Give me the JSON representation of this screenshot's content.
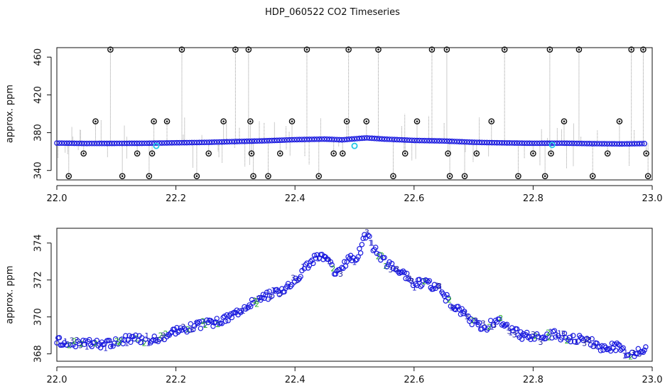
{
  "figure": {
    "title": "HDP_060522  CO2 Timeseries"
  },
  "colors": {
    "raw_point": "#111111",
    "raw_line": "#9a9a9a",
    "series": "#1a1adf",
    "highlight": "#27c8e6",
    "label_1": "#2222cc",
    "label_2": "#22aa22",
    "label_3": "#1a1a99"
  },
  "chart_data": [
    {
      "type": "scatter",
      "title": "",
      "xlabel": "",
      "ylabel": "approx. ppm",
      "xlim": [
        22.0,
        23.0
      ],
      "ylim": [
        330,
        470
      ],
      "xticks": [
        "22.0",
        "22.2",
        "22.4",
        "22.6",
        "22.8",
        "23.0"
      ],
      "yticks": [
        "340",
        "380",
        "420",
        "460"
      ],
      "grid": false,
      "series": [
        {
          "marker": "blue circle",
          "x": [
            22.0,
            22.05,
            22.1,
            22.15,
            22.2,
            22.25,
            22.3,
            22.35,
            22.4,
            22.45,
            22.48,
            22.5,
            22.52,
            22.55,
            22.6,
            22.65,
            22.7,
            22.75,
            22.8,
            22.85,
            22.9,
            22.95,
            22.99
          ],
          "y": [
            369,
            368.6,
            368.7,
            368.8,
            369.3,
            369.7,
            370.6,
            371.4,
            372.6,
            373.2,
            372.4,
            373.5,
            374.5,
            373.2,
            371.8,
            371.2,
            369.8,
            369.2,
            368.8,
            368.9,
            368.4,
            368.1,
            368.5
          ]
        },
        {
          "marker": "black open circle",
          "x": [
            22.02,
            22.045,
            22.065,
            22.09,
            22.11,
            22.135,
            22.155,
            22.16,
            22.163,
            22.185,
            22.21,
            22.235,
            22.255,
            22.28,
            22.3,
            22.322,
            22.325,
            22.327,
            22.33,
            22.355,
            22.375,
            22.395,
            22.42,
            22.44,
            22.465,
            22.48,
            22.487,
            22.49,
            22.52,
            22.54,
            22.565,
            22.585,
            22.605,
            22.63,
            22.655,
            22.657,
            22.66,
            22.685,
            22.705,
            22.73,
            22.752,
            22.775,
            22.8,
            22.82,
            22.828,
            22.83,
            22.852,
            22.877,
            22.9,
            22.925,
            22.945,
            22.965,
            22.985,
            22.99,
            22.993
          ],
          "y": [
            334,
            358,
            392,
            468,
            334,
            358,
            334,
            358,
            392,
            392,
            468,
            334,
            358,
            392,
            468,
            468,
            392,
            358,
            334,
            334,
            358,
            392,
            468,
            334,
            358,
            358,
            392,
            468,
            392,
            468,
            334,
            358,
            392,
            468,
            468,
            358,
            334,
            334,
            358,
            392,
            468,
            334,
            358,
            334,
            468,
            358,
            392,
            468,
            334,
            358,
            392,
            468,
            468,
            358,
            334
          ]
        },
        {
          "marker": "cyan circle",
          "x": [
            22.167,
            22.5,
            22.832
          ],
          "y": [
            366,
            366,
            367
          ]
        }
      ]
    },
    {
      "type": "scatter",
      "title": "",
      "xlabel": "",
      "ylabel": "approx. ppm",
      "xlim": [
        22.0,
        23.0
      ],
      "ylim": [
        367.6,
        374.8
      ],
      "xticks": [
        "22.0",
        "22.2",
        "22.4",
        "22.6",
        "22.8",
        "23.0"
      ],
      "yticks": [
        "368",
        "370",
        "372",
        "374"
      ],
      "grid": false,
      "series": [
        {
          "marker": "digits 1, 2, 3",
          "x": [
            22.0,
            22.02,
            22.05,
            22.08,
            22.1,
            22.12,
            22.15,
            22.17,
            22.2,
            22.22,
            22.25,
            22.28,
            22.3,
            22.32,
            22.35,
            22.38,
            22.4,
            22.42,
            22.44,
            22.455,
            22.46,
            22.47,
            22.48,
            22.49,
            22.5,
            22.51,
            22.52,
            22.53,
            22.55,
            22.58,
            22.6,
            22.62,
            22.64,
            22.66,
            22.68,
            22.7,
            22.72,
            22.74,
            22.76,
            22.78,
            22.8,
            22.82,
            22.83,
            22.85,
            22.88,
            22.9,
            22.92,
            22.94,
            22.96,
            22.98,
            22.99
          ],
          "y": [
            368.7,
            368.5,
            368.6,
            368.5,
            368.7,
            368.8,
            368.8,
            368.8,
            369.3,
            369.4,
            369.6,
            369.8,
            370.2,
            370.7,
            371.1,
            371.5,
            372.0,
            372.8,
            373.3,
            373.3,
            372.8,
            372.3,
            372.6,
            373.3,
            373.1,
            373.6,
            374.6,
            373.8,
            373.0,
            372.4,
            371.8,
            371.8,
            371.6,
            370.8,
            370.3,
            369.7,
            369.4,
            369.9,
            369.4,
            369.0,
            368.9,
            368.8,
            369.1,
            368.9,
            368.8,
            368.6,
            368.3,
            368.4,
            368.0,
            368.1,
            368.5
          ]
        }
      ]
    }
  ]
}
